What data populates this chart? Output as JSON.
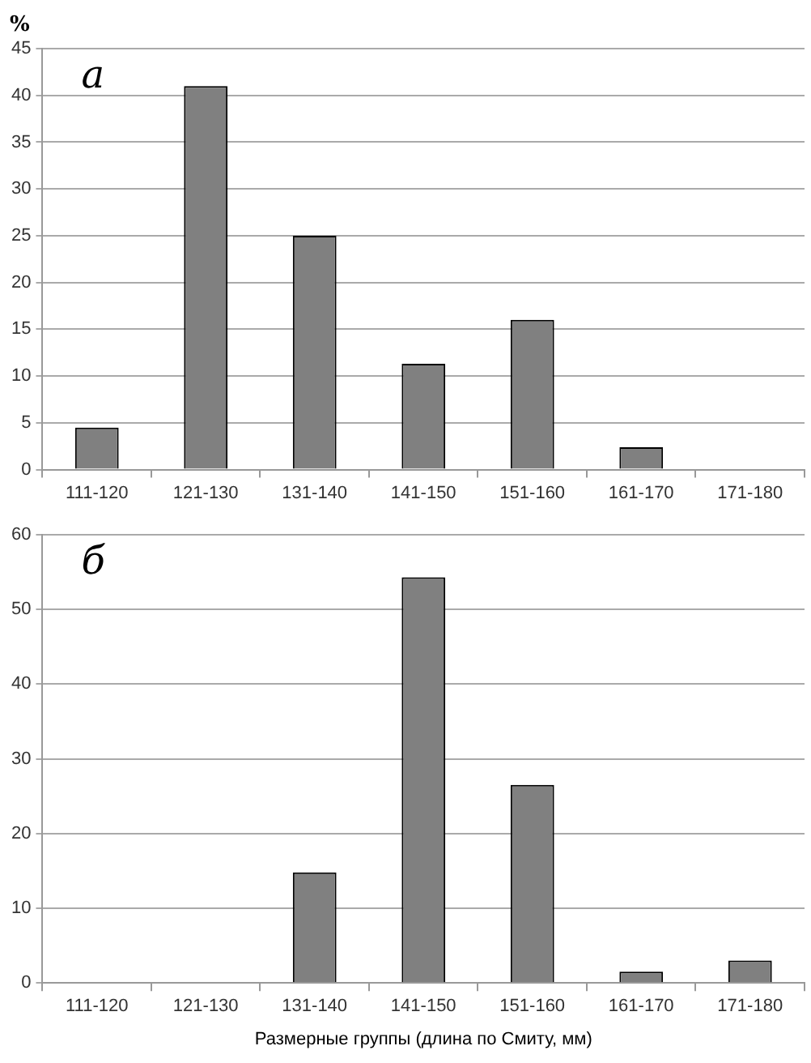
{
  "chart_data": [
    {
      "type": "bar",
      "ylabel": "%",
      "annotations": [
        "а"
      ],
      "categories": [
        "111-120",
        "121-130",
        "131-140",
        "141-150",
        "151-160",
        "161-170",
        "171-180"
      ],
      "values": [
        4.5,
        41,
        25,
        11.3,
        16,
        2.4,
        0
      ],
      "color": "#808080",
      "ylim": [
        0,
        45
      ],
      "yticks": [
        0,
        5,
        10,
        15,
        20,
        25,
        30,
        35,
        40,
        45
      ],
      "grid": "y"
    },
    {
      "type": "bar",
      "xlabel": "Размерные группы (длина по Смиту, мм)",
      "annotations": [
        "б"
      ],
      "categories": [
        "111-120",
        "121-130",
        "131-140",
        "141-150",
        "151-160",
        "161-170",
        "171-180"
      ],
      "values": [
        0,
        0,
        14.8,
        54.3,
        26.5,
        1.5,
        3.0
      ],
      "color": "#808080",
      "ylim": [
        0,
        60
      ],
      "yticks": [
        0,
        10,
        20,
        30,
        40,
        50,
        60
      ],
      "grid": "y"
    }
  ]
}
